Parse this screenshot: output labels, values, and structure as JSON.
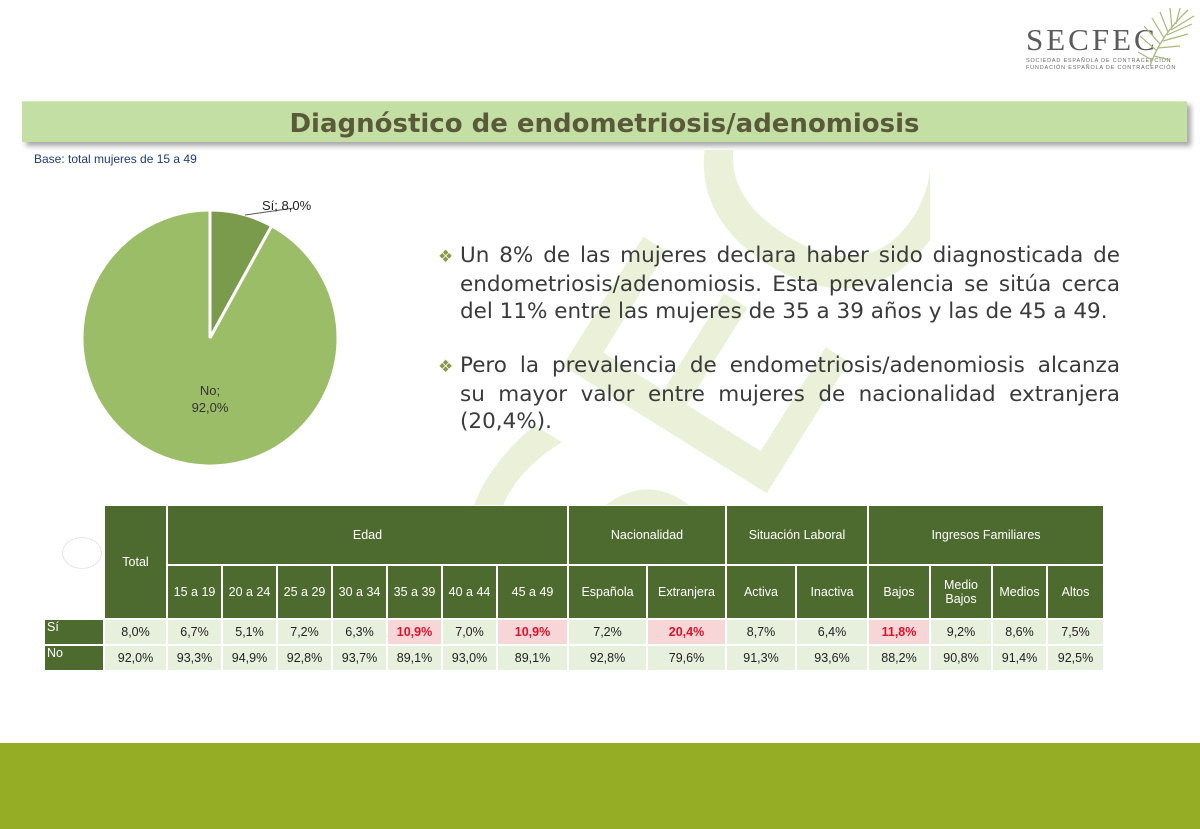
{
  "logo": {
    "text": "SECFEC",
    "sub_line1": "SOCIEDAD ESPAÑOLA DE CONTRACEPCIÓN",
    "sub_line2": "FUNDACIÓN ESPAÑOLA DE CONTRACEPCIÓN"
  },
  "title": "Diagnóstico de endometriosis/adenomiosis",
  "base_note": "Base: total mujeres de 15 a 49",
  "watermark": "SEC",
  "bullets": [
    "Un 8% de las mujeres declara haber sido diagnosticada de endometriosis/adenomiosis. Esta prevalencia se sitúa cerca del 11% entre las mujeres de 35 a 39 años y las de 45 a 49.",
    "Pero la prevalencia de endometriosis/adenomiosis alcanza su mayor valor entre mujeres de nacionalidad extranjera (20,4%)."
  ],
  "chart_data": {
    "type": "pie",
    "slices": [
      {
        "label": "Sí",
        "value": 8.0,
        "display": "Sí; 8,0%",
        "color": "#7a9a4c"
      },
      {
        "label": "No",
        "value": 92.0,
        "display_line1": "No;",
        "display_line2": "92,0%",
        "color": "#9cbd68"
      }
    ]
  },
  "table": {
    "total_header": "Total",
    "groups": [
      {
        "name": "Edad",
        "columns": [
          "15 a 19",
          "20 a 24",
          "25 a 29",
          "30 a 34",
          "35 a 39",
          "40 a 44",
          "45 a 49"
        ]
      },
      {
        "name": "Nacionalidad",
        "columns": [
          "Española",
          "Extranjera"
        ]
      },
      {
        "name": "Situación Laboral",
        "columns": [
          "Activa",
          "Inactiva"
        ]
      },
      {
        "name": "Ingresos Familiares",
        "columns": [
          "Bajos",
          "Medio Bajos",
          "Medios",
          "Altos"
        ]
      }
    ],
    "rows": [
      {
        "label": "Sí",
        "values": [
          "8,0%",
          "6,7%",
          "5,1%",
          "7,2%",
          "6,3%",
          "10,9%",
          "7,0%",
          "10,9%",
          "7,2%",
          "20,4%",
          "8,7%",
          "6,4%",
          "11,8%",
          "9,2%",
          "8,6%",
          "7,5%"
        ],
        "highlight": [
          5,
          7,
          9,
          12
        ]
      },
      {
        "label": "No",
        "values": [
          "92,0%",
          "93,3%",
          "94,9%",
          "92,8%",
          "93,7%",
          "89,1%",
          "93,0%",
          "89,1%",
          "92,8%",
          "79,6%",
          "91,3%",
          "93,6%",
          "88,2%",
          "90,8%",
          "91,4%",
          "92,5%"
        ],
        "highlight": []
      }
    ]
  }
}
